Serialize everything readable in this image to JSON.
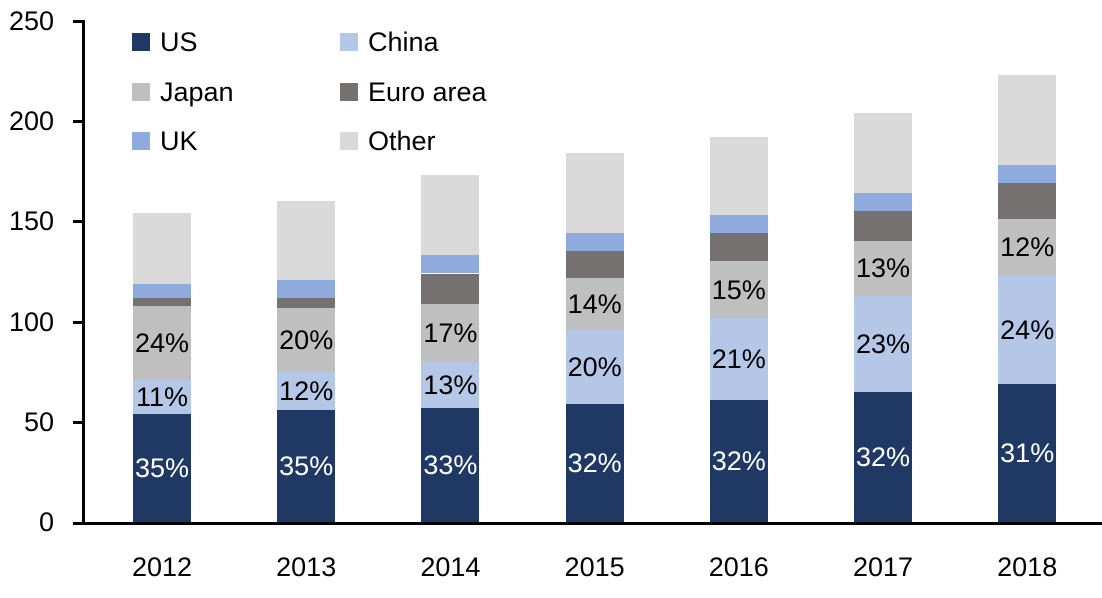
{
  "chart_data": {
    "type": "bar",
    "stacked": true,
    "title": "",
    "xlabel": "",
    "ylabel": "",
    "grid": false,
    "legend_position": "top-left",
    "ylim": [
      0,
      250
    ],
    "y_ticks": [
      0,
      50,
      100,
      150,
      200,
      250
    ],
    "y_tick_labels": [
      "0",
      "50",
      "100",
      "150",
      "200",
      "250"
    ],
    "categories": [
      "2012",
      "2013",
      "2014",
      "2015",
      "2016",
      "2017",
      "2018"
    ],
    "totals": [
      154,
      160,
      173,
      184,
      192,
      204,
      223
    ],
    "series": [
      {
        "name": "US",
        "color": "#1F3864",
        "values": [
          54,
          56,
          57,
          59,
          61,
          65,
          69
        ],
        "labels": [
          "35%",
          "35%",
          "33%",
          "32%",
          "32%",
          "32%",
          "31%"
        ],
        "label_color": "#FFFFFF"
      },
      {
        "name": "China",
        "color": "#B4C7E7",
        "values": [
          17,
          19,
          23,
          37,
          41,
          48,
          54
        ],
        "labels": [
          "11%",
          "12%",
          "13%",
          "20%",
          "21%",
          "23%",
          "24%"
        ],
        "label_color": "#000000"
      },
      {
        "name": "Japan",
        "color": "#BFBFBF",
        "values": [
          37,
          32,
          29,
          26,
          28,
          27,
          28
        ],
        "labels": [
          "24%",
          "20%",
          "17%",
          "14%",
          "15%",
          "13%",
          "12%"
        ],
        "label_color": "#000000"
      },
      {
        "name": "Euro area",
        "color": "#767171",
        "values": [
          4,
          5,
          15,
          13,
          14,
          15,
          18
        ],
        "labels": [
          "",
          "",
          "",
          "",
          "",
          "",
          ""
        ],
        "label_color": "#000000"
      },
      {
        "name": "UK",
        "color": "#8FAADC",
        "values": [
          7,
          9,
          9,
          9,
          9,
          9,
          9
        ],
        "labels": [
          "",
          "",
          "",
          "",
          "",
          "",
          ""
        ],
        "label_color": "#000000"
      },
      {
        "name": "Other",
        "color": "#D9D9D9",
        "values": [
          35,
          39,
          40,
          40,
          39,
          40,
          45
        ],
        "labels": [
          "",
          "",
          "",
          "",
          "",
          "",
          ""
        ],
        "label_color": "#000000"
      }
    ],
    "legend": [
      {
        "label": "US",
        "color": "#1F3864"
      },
      {
        "label": "China",
        "color": "#B4C7E7"
      },
      {
        "label": "Japan",
        "color": "#BFBFBF"
      },
      {
        "label": "Euro area",
        "color": "#767171"
      },
      {
        "label": "UK",
        "color": "#8FAADC"
      },
      {
        "label": "Other",
        "color": "#D9D9D9"
      }
    ],
    "axis_color": "#000000",
    "text_color": "#000000",
    "background_color": "#FFFFFF"
  }
}
